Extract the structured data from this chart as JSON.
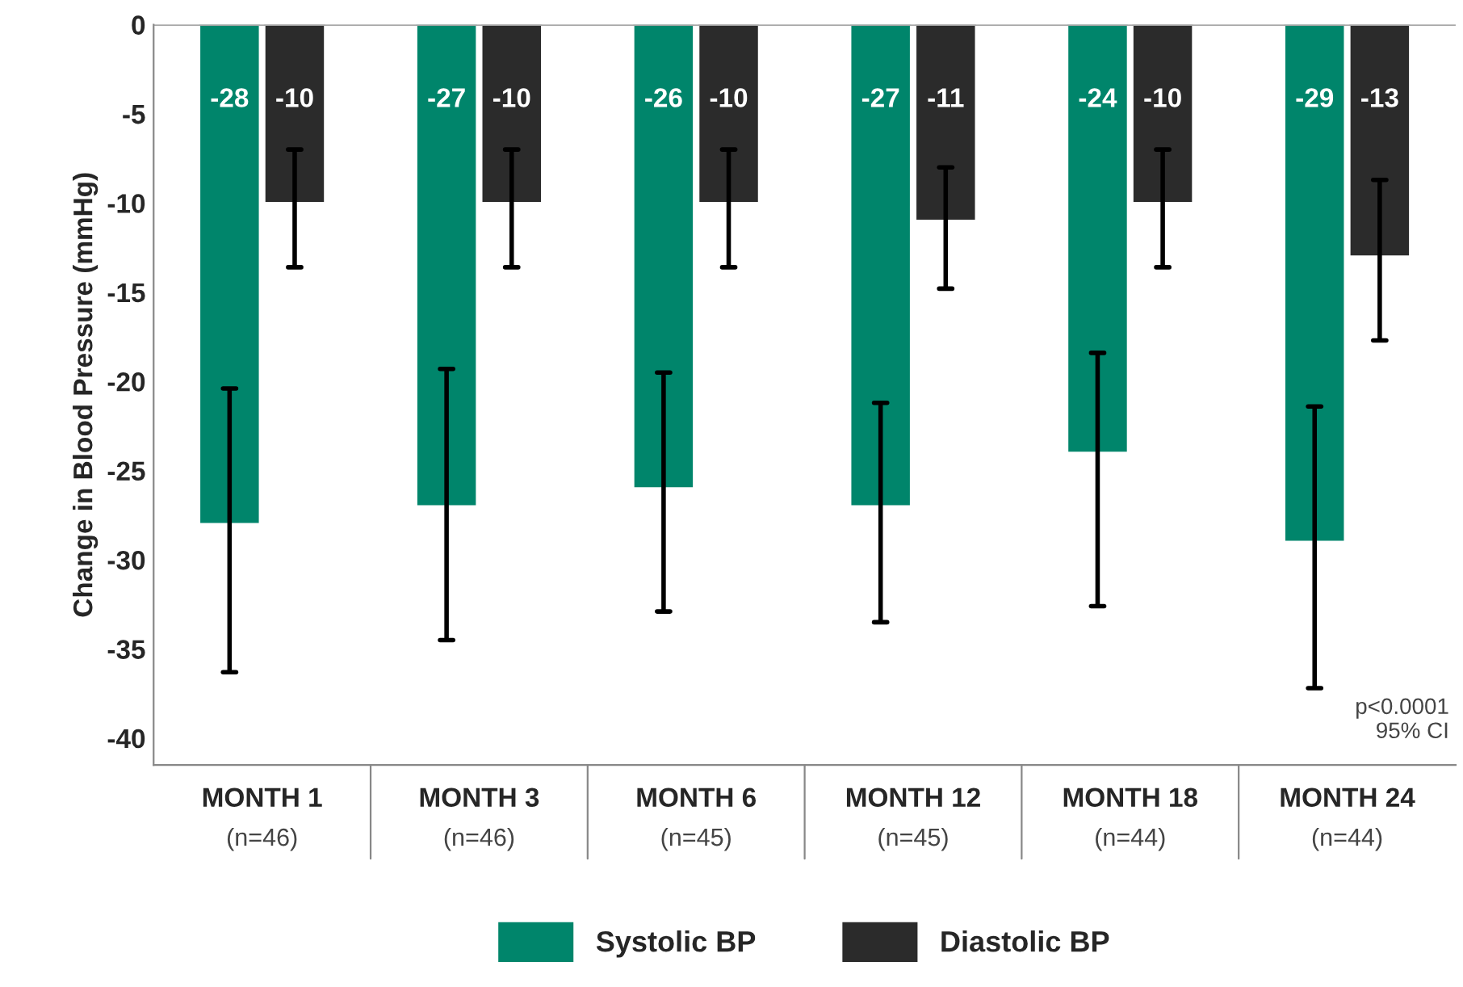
{
  "chart_data": {
    "type": "bar",
    "ylabel": "Change in Blood Pressure (mmHg)",
    "categories": [
      "MONTH 1\n(n=46)",
      "MONTH 3\n(n=46)",
      "MONTH 6\n(n=45)",
      "MONTH 12\n(n=45)",
      "MONTH 18\n(n=44)",
      "MONTH 24\n(n=44)"
    ],
    "series": [
      {
        "name": "Systolic BP",
        "color": "#00856b",
        "values": [
          -28,
          -27,
          -26,
          -27,
          -24,
          -29
        ],
        "errors": [
          [
            -36.3,
            -20.4
          ],
          [
            -34.5,
            -19.3
          ],
          [
            -32.9,
            -19.5
          ],
          [
            -33.5,
            -21.2
          ],
          [
            -32.6,
            -18.4
          ],
          [
            -37.2,
            -21.4
          ]
        ]
      },
      {
        "name": "Diastolic BP",
        "color": "#2b2b2b",
        "values": [
          -10,
          -10,
          -10,
          -11,
          -10,
          -13
        ],
        "errors": [
          [
            -13.6,
            -7.0
          ],
          [
            -13.6,
            -7.0
          ],
          [
            -13.6,
            -7.0
          ],
          [
            -14.8,
            -8.0
          ],
          [
            -13.6,
            -7.0
          ],
          [
            -17.7,
            -8.7
          ]
        ]
      }
    ],
    "ylim": [
      -41.5,
      0
    ],
    "yticks": [
      0,
      -5,
      -10,
      -15,
      -20,
      -25,
      -30,
      -35,
      -40
    ],
    "data_labels": true,
    "grid": false,
    "legend": "bottom",
    "annotations": [
      "p<0.0001\n95% CI"
    ]
  }
}
